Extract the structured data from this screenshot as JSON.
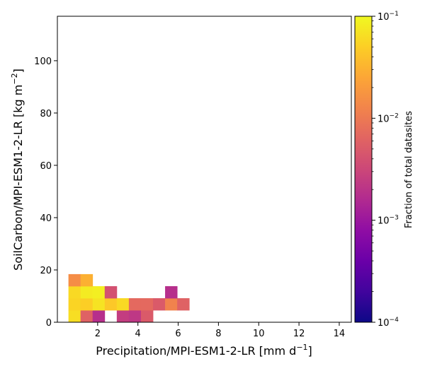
{
  "chart_data": {
    "type": "heatmap",
    "xlabel": "Precipitation/MPI-ESM1-2-LR [mm d",
    "xlabel_unit_sup": "−1",
    "xlabel_suffix": "]",
    "ylabel": "SoilCarbon/MPI-ESM1-2-LR [kg m",
    "ylabel_unit_sup": "−2",
    "ylabel_suffix": "]",
    "xlim": [
      0,
      14.6
    ],
    "ylim": [
      0,
      117
    ],
    "xticks": [
      2,
      4,
      6,
      8,
      10,
      12,
      14
    ],
    "yticks": [
      0,
      20,
      40,
      60,
      80,
      100
    ],
    "xtick_labels": [
      "2",
      "4",
      "6",
      "8",
      "10",
      "12",
      "14"
    ],
    "ytick_labels": [
      "0",
      "20",
      "40",
      "60",
      "80",
      "100"
    ],
    "colorbar": {
      "label": "Fraction of total datasites",
      "scale": "log",
      "range": [
        0.0001,
        0.1
      ],
      "colormap": "plasma",
      "ticks": [
        {
          "value": 0.1,
          "base": "10",
          "exp": "−1"
        },
        {
          "value": 0.01,
          "base": "10",
          "exp": "−2"
        },
        {
          "value": 0.001,
          "base": "10",
          "exp": "−3"
        },
        {
          "value": 0.0001,
          "base": "10",
          "exp": "−4"
        }
      ]
    },
    "bin_width_x": 0.6,
    "bin_height_y": 4.6,
    "cells": [
      {
        "x": 0.55,
        "y": 0.0,
        "value": 0.065
      },
      {
        "x": 1.15,
        "y": 0.0,
        "value": 0.006
      },
      {
        "x": 1.75,
        "y": 0.0,
        "value": 0.0018
      },
      {
        "x": 2.95,
        "y": 0.0,
        "value": 0.0025
      },
      {
        "x": 3.55,
        "y": 0.0,
        "value": 0.0022
      },
      {
        "x": 4.15,
        "y": 0.0,
        "value": 0.005
      },
      {
        "x": 0.55,
        "y": 4.6,
        "value": 0.055
      },
      {
        "x": 1.15,
        "y": 4.6,
        "value": 0.05
      },
      {
        "x": 1.75,
        "y": 4.6,
        "value": 0.07
      },
      {
        "x": 2.35,
        "y": 4.6,
        "value": 0.045
      },
      {
        "x": 2.95,
        "y": 4.6,
        "value": 0.06
      },
      {
        "x": 3.55,
        "y": 4.6,
        "value": 0.007
      },
      {
        "x": 4.15,
        "y": 4.6,
        "value": 0.007
      },
      {
        "x": 4.75,
        "y": 4.6,
        "value": 0.005
      },
      {
        "x": 5.35,
        "y": 4.6,
        "value": 0.012
      },
      {
        "x": 5.95,
        "y": 4.6,
        "value": 0.006
      },
      {
        "x": 0.55,
        "y": 9.2,
        "value": 0.06
      },
      {
        "x": 1.15,
        "y": 9.2,
        "value": 0.08
      },
      {
        "x": 1.75,
        "y": 9.2,
        "value": 0.085
      },
      {
        "x": 2.35,
        "y": 9.2,
        "value": 0.004
      },
      {
        "x": 5.35,
        "y": 9.2,
        "value": 0.0018
      },
      {
        "x": 0.55,
        "y": 13.8,
        "value": 0.015
      },
      {
        "x": 1.15,
        "y": 13.8,
        "value": 0.03
      }
    ]
  }
}
